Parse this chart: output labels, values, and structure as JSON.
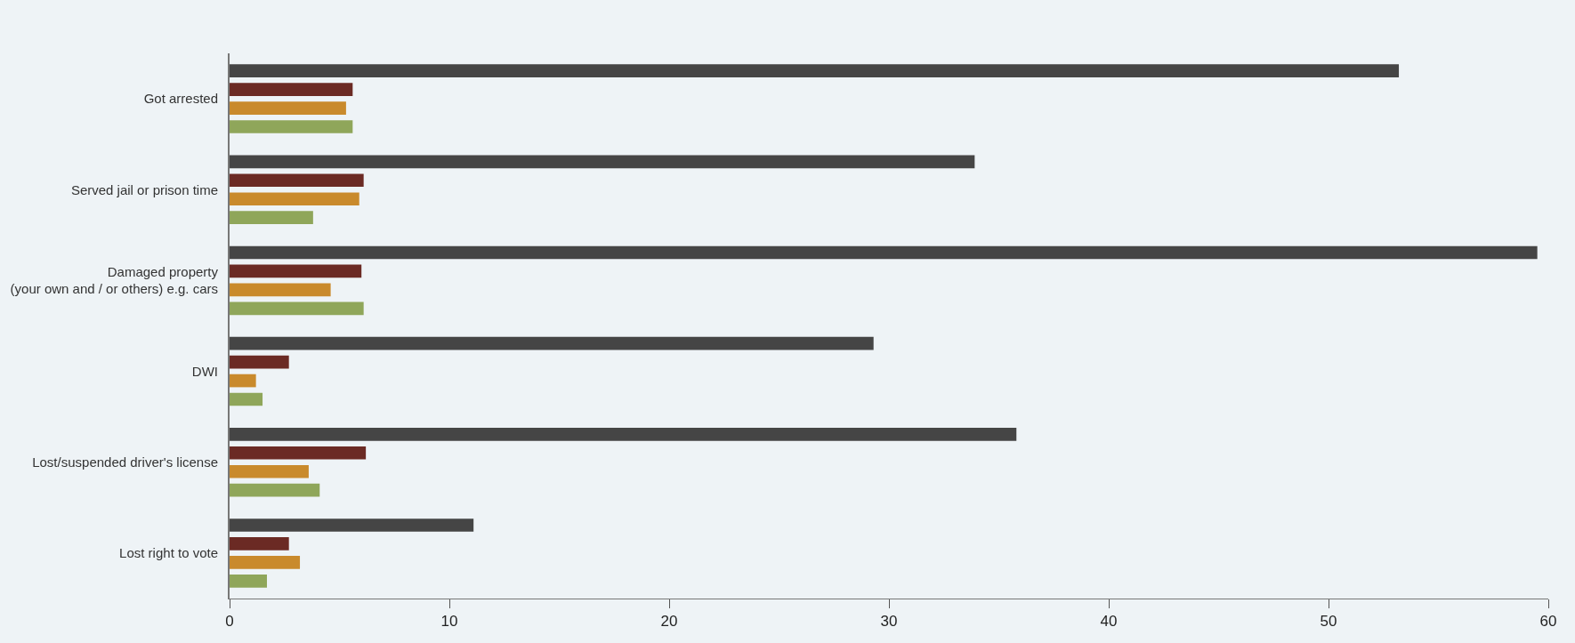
{
  "chart_data": {
    "type": "bar",
    "orientation": "horizontal",
    "categories": [
      "Got arrested",
      "Served jail or prison time",
      "Damaged property\n(your own and / or others) e.g. cars",
      "DWI",
      "Lost/suspended driver's license",
      "Lost right to vote"
    ],
    "series": [
      {
        "color": "#454545",
        "values": [
          53.2,
          33.9,
          59.5,
          29.3,
          35.8,
          11.1
        ]
      },
      {
        "color": "#6b2a24",
        "values": [
          5.6,
          6.1,
          6.0,
          2.7,
          6.2,
          2.7
        ]
      },
      {
        "color": "#c98a2c",
        "values": [
          5.3,
          5.9,
          4.6,
          1.2,
          3.6,
          3.2
        ]
      },
      {
        "color": "#8fa65a",
        "values": [
          5.6,
          3.8,
          6.1,
          1.5,
          4.1,
          1.7
        ]
      }
    ],
    "xlim": [
      0,
      60
    ],
    "xticks": [
      0,
      10,
      20,
      30,
      40,
      50,
      60
    ]
  }
}
